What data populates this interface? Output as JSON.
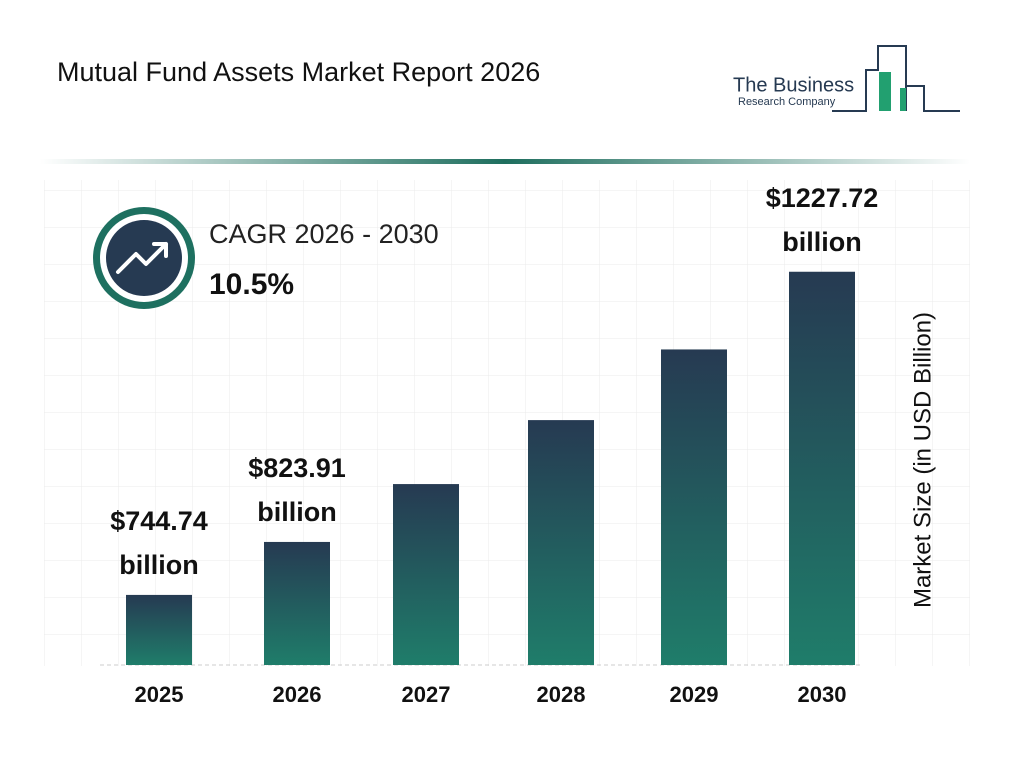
{
  "chart_data": {
    "type": "bar",
    "title": "Mutual Fund Assets Market Report 2026",
    "categories": [
      "2025",
      "2026",
      "2027",
      "2028",
      "2029",
      "2030"
    ],
    "values": [
      744.74,
      823.91,
      910.4,
      1006.0,
      1111.6,
      1227.72
    ],
    "value_labels": [
      "$744.74 billion",
      "$823.91 billion",
      null,
      null,
      null,
      "$1227.72 billion"
    ],
    "ylabel": "Market Size (in USD Billion)",
    "ylim": [
      640,
      1320
    ],
    "color_top": "#263a52",
    "color_bottom": "#1f7d6a",
    "cagr_label": "CAGR 2026 - 2030",
    "cagr_value": "10.5%"
  },
  "logo": {
    "line1": "The Business",
    "line2": "Research Company"
  }
}
